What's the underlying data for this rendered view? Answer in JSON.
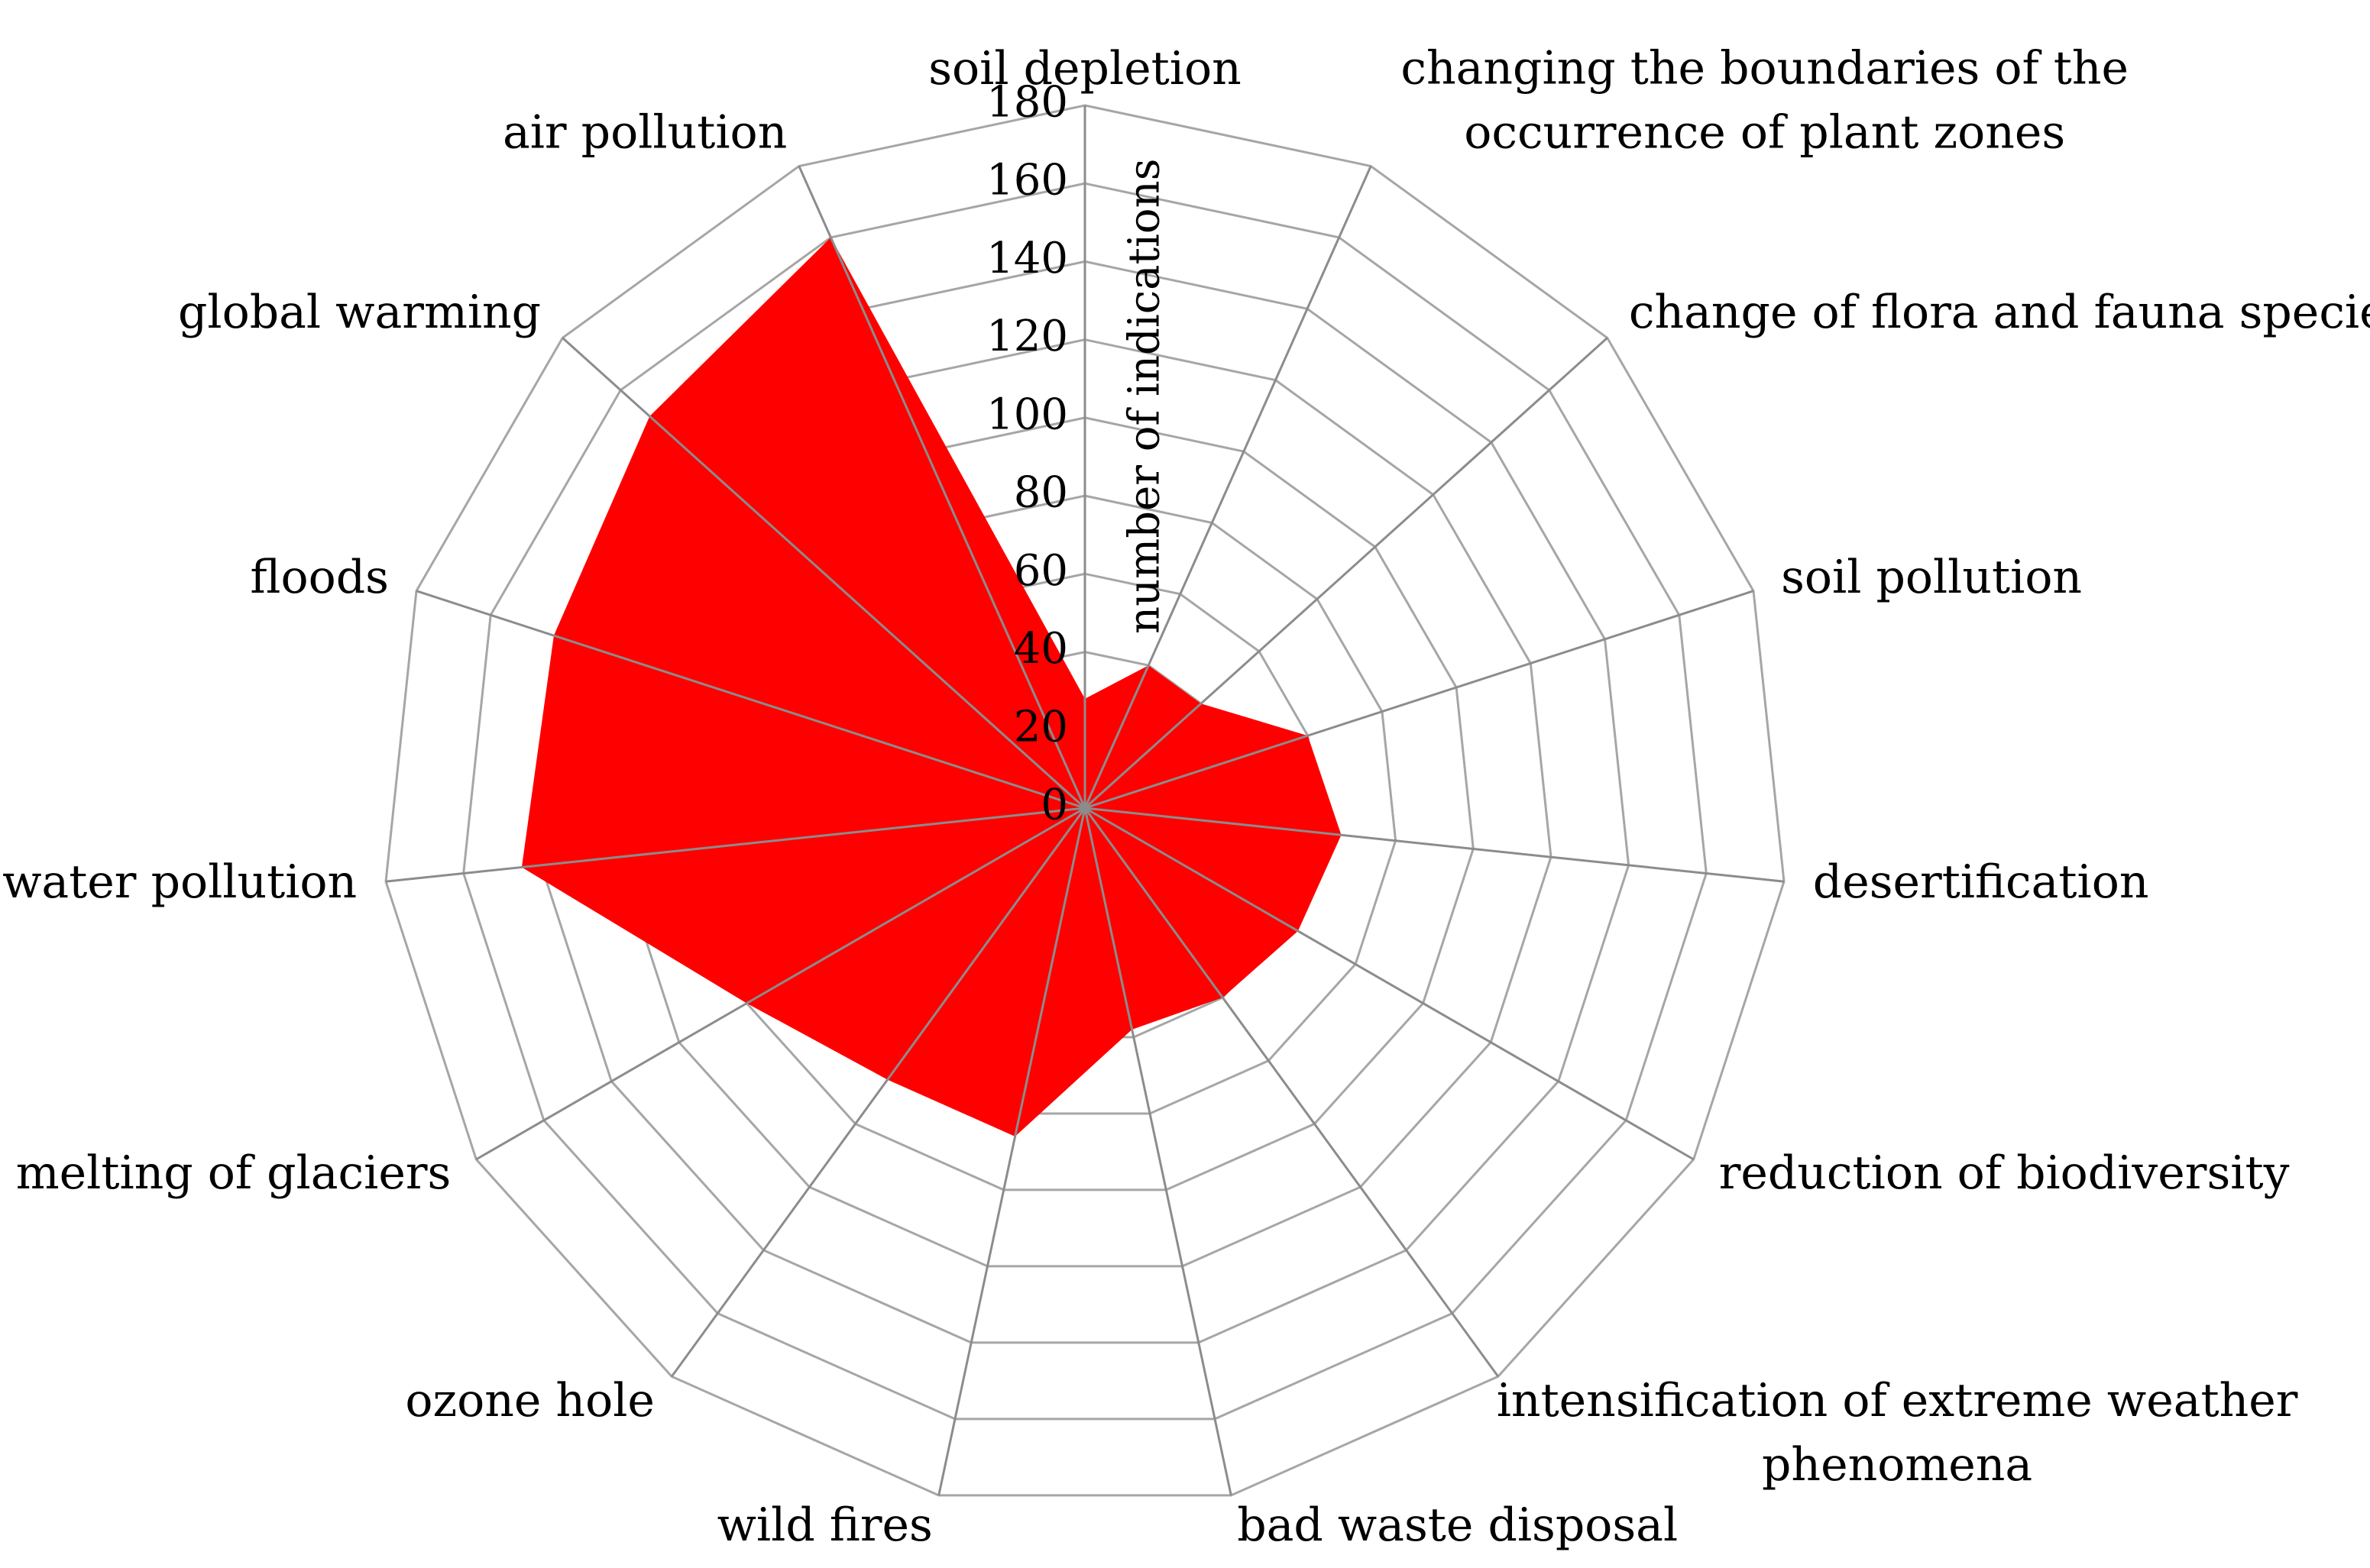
{
  "chart_data": {
    "type": "radar",
    "title": "",
    "ylabel": "number of indications",
    "ylim": [
      0,
      180
    ],
    "ticks": [
      0,
      20,
      40,
      60,
      80,
      100,
      120,
      140,
      160,
      180
    ],
    "tick_labels": [
      "0",
      "20",
      "40",
      "60",
      "80",
      "100",
      "120",
      "140",
      "160",
      "180"
    ],
    "fill_color": "#ff0000",
    "grid_color": "#a6a6a6",
    "categories": [
      "soil depletion",
      "changing the boundaries of the occurrence of plant zones",
      "change of flora and fauna species",
      "soil pollution",
      "desertification",
      "reduction of biodiversity",
      "intensification of extreme weather phenomena",
      "bad waste disposal",
      "wild fires",
      "ozone hole",
      "melting of glaciers",
      "water pollution",
      "floods",
      "global warming",
      "air pollution"
    ],
    "label_lines": [
      [
        "soil depletion"
      ],
      [
        "changing the boundaries of the",
        "occurrence of plant zones"
      ],
      [
        "change of flora and fauna species"
      ],
      [
        "soil pollution"
      ],
      [
        "desertification"
      ],
      [
        "reduction of biodiversity"
      ],
      [
        "intensification of extreme weather",
        "phenomena"
      ],
      [
        "bad waste disposal"
      ],
      [
        "wild fires"
      ],
      [
        "ozone hole"
      ],
      [
        "melting of glaciers"
      ],
      [
        "water pollution"
      ],
      [
        "floods"
      ],
      [
        "global warming"
      ],
      [
        "air pollution"
      ]
    ],
    "values": [
      28,
      40,
      40,
      60,
      66,
      63,
      60,
      58,
      86,
      86,
      100,
      145,
      143,
      150,
      160
    ]
  }
}
